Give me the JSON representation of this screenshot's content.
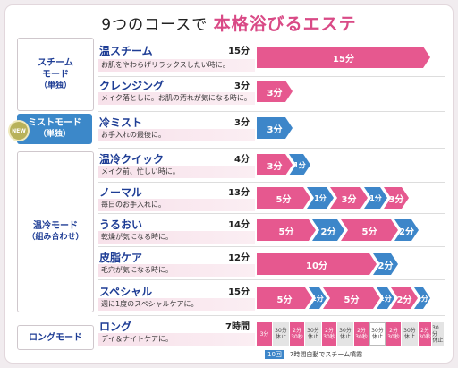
{
  "title": {
    "prefix": "9つのコースで ",
    "accent": "本格浴びるエステ"
  },
  "modes": {
    "steam": {
      "line1": "スチーム",
      "line2": "モード",
      "sub": "（単独）"
    },
    "mist": {
      "badge": "NEW",
      "line1": "ミストモード",
      "sub": "（単独）"
    },
    "combo": {
      "line1": "温冷モード",
      "sub": "（組み合わせ）"
    },
    "long": {
      "line1": "ロングモード"
    }
  },
  "courses": [
    {
      "name": "温スチーム",
      "duration": "15分",
      "desc": "お肌をやわらげリラックスしたい時に。",
      "bars": [
        {
          "label": "15分",
          "color": "pink"
        }
      ]
    },
    {
      "name": "クレンジング",
      "duration": "3分",
      "desc": "メイク落としに。お肌の汚れが気になる時に。",
      "bars": [
        {
          "label": "3分",
          "color": "pink"
        }
      ]
    },
    {
      "name": "冷ミスト",
      "duration": "3分",
      "desc": "お手入れの最後に。",
      "bars": [
        {
          "label": "3分",
          "color": "blue"
        }
      ]
    },
    {
      "name": "温冷クイック",
      "duration": "4分",
      "desc": "メイク前、忙しい時に。",
      "bars": [
        {
          "label": "3分",
          "color": "pink"
        },
        {
          "label": "1分",
          "color": "blue"
        }
      ]
    },
    {
      "name": "ノーマル",
      "duration": "13分",
      "desc": "毎日のお手入れに。",
      "bars": [
        {
          "label": "5分",
          "color": "pink"
        },
        {
          "label": "1分",
          "color": "blue"
        },
        {
          "label": "3分",
          "color": "pink"
        },
        {
          "label": "1分",
          "color": "blue"
        },
        {
          "label": "3分",
          "color": "pink"
        }
      ]
    },
    {
      "name": "うるおい",
      "duration": "14分",
      "desc": "乾燥が気になる時に。",
      "bars": [
        {
          "label": "5分",
          "color": "pink"
        },
        {
          "label": "2分",
          "color": "blue"
        },
        {
          "label": "5分",
          "color": "pink"
        },
        {
          "label": "2分",
          "color": "blue"
        }
      ]
    },
    {
      "name": "皮脂ケア",
      "duration": "12分",
      "desc": "毛穴が気になる時に。",
      "bars": [
        {
          "label": "10分",
          "color": "pink"
        },
        {
          "label": "2分",
          "color": "blue"
        }
      ]
    },
    {
      "name": "スペシャル",
      "duration": "15分",
      "desc": "週に1度のスペシャルケアに。",
      "bars": [
        {
          "label": "5分",
          "color": "pink"
        },
        {
          "label": "1分",
          "color": "blue"
        },
        {
          "label": "5分",
          "color": "pink"
        },
        {
          "label": "1分",
          "color": "blue"
        },
        {
          "label": "2分",
          "color": "pink"
        },
        {
          "label": "1分",
          "color": "blue"
        }
      ]
    },
    {
      "name": "ロング",
      "duration": "7時間",
      "desc": "デイ＆ナイトケアに。"
    }
  ],
  "long_segments": [
    {
      "t1": "3分",
      "t2": "",
      "color": "pk"
    },
    {
      "t1": "30分",
      "t2": "休止",
      "color": "gr"
    },
    {
      "t1": "2分",
      "t2": "30秒",
      "color": "pk"
    },
    {
      "t1": "30分",
      "t2": "休止",
      "color": "gr"
    },
    {
      "t1": "2分",
      "t2": "30秒",
      "color": "pk"
    },
    {
      "t1": "30分",
      "t2": "休止",
      "color": "gr"
    },
    {
      "t1": "2分",
      "t2": "30秒",
      "color": "pk"
    },
    {
      "t1": "30分",
      "t2": "休止",
      "color": "wt"
    },
    {
      "t1": "2分",
      "t2": "30秒",
      "color": "pk"
    },
    {
      "t1": "30分",
      "t2": "休止",
      "color": "gr"
    },
    {
      "t1": "2分",
      "t2": "30秒",
      "color": "pk"
    },
    {
      "t1": "30分",
      "t2": "休止",
      "color": "gr"
    }
  ],
  "long_note": {
    "chip": "10回",
    "text": "7時間自動でスチーム噴霧"
  }
}
